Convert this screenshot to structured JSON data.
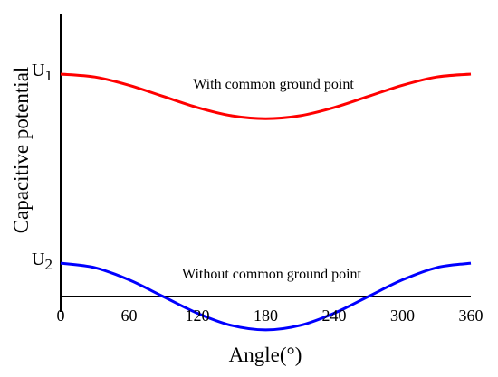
{
  "chart_data": {
    "type": "line",
    "xlabel": "Angle(°)",
    "ylabel": "Capacitive potential",
    "xlim": [
      0,
      360
    ],
    "ylim": [
      -0.2,
      1.3
    ],
    "x_ticks": [
      "0",
      "60",
      "120",
      "180",
      "240",
      "300",
      "360"
    ],
    "x_tick_values": [
      0,
      60,
      120,
      180,
      240,
      300,
      360
    ],
    "y_tick_labels": [
      {
        "main": "U",
        "sub": "1",
        "value": 1.0
      },
      {
        "main": "U",
        "sub": "2",
        "value": 0.15
      }
    ],
    "zero_line": true,
    "grid": false,
    "series": [
      {
        "color": "#ff0000",
        "annotation": "With common ground point",
        "x": [
          0,
          30,
          60,
          90,
          120,
          150,
          180,
          210,
          240,
          270,
          300,
          330,
          360
        ],
        "y": [
          1.0,
          0.987,
          0.95,
          0.9,
          0.85,
          0.813,
          0.8,
          0.813,
          0.85,
          0.9,
          0.95,
          0.987,
          1.0
        ]
      },
      {
        "color": "#0000ff",
        "annotation": "Without common ground point",
        "x": [
          0,
          30,
          60,
          90,
          120,
          150,
          180,
          210,
          240,
          270,
          300,
          330,
          360
        ],
        "y": [
          0.15,
          0.13,
          0.075,
          0.0,
          -0.075,
          -0.13,
          -0.15,
          -0.13,
          -0.075,
          0.0,
          0.075,
          0.13,
          0.15
        ]
      }
    ]
  }
}
